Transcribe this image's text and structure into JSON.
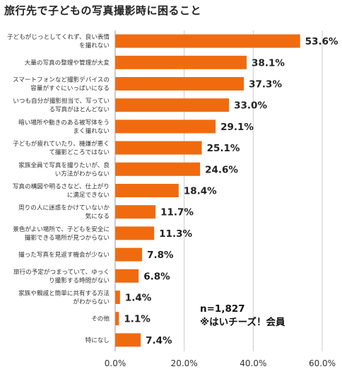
{
  "colors": {
    "bar": "#f06b0f",
    "axis": "#999999",
    "grid": "#cccccc"
  },
  "note": {
    "n": "n=1,827",
    "member": "※はいチーズ！会員"
  },
  "chart_data": {
    "type": "bar",
    "orientation": "horizontal",
    "title": "旅行先で子どもの写真撮影時に困ること",
    "categories": [
      [
        "子どもがじっとしてくれず、良い表情",
        "を撮れない"
      ],
      [
        "大量の写真の整理や管理が大変"
      ],
      [
        "スマートフォンなど撮影デバイスの",
        "容量がすぐにいっぱいになる"
      ],
      [
        "いつも自分が撮影担当で、写ってい",
        "る写真がほとんどない"
      ],
      [
        "暗い場所や動きのある被写体をう",
        "まく撮れない"
      ],
      [
        "子どもが疲れていたり、機嫌が悪く",
        "て撮影どころではない"
      ],
      [
        "家族全員で写真を撮りたいが、良",
        "い方法がわからない"
      ],
      [
        "写真の構図や明るさなど、仕上がり",
        "に満足できない"
      ],
      [
        "周りの人に迷惑をかけていないか",
        "気になる"
      ],
      [
        "景色がよい場所で、子どもを安全に",
        "撮影できる場所が見つからない"
      ],
      [
        "撮った写真を見返す機会が少ない"
      ],
      [
        "旅行の予定がつまっていて、ゆっく",
        "り撮影する時間がない"
      ],
      [
        "家族や親戚と簡単に共有する方法",
        "がわからない"
      ],
      [
        "その他"
      ],
      [
        "特になし"
      ]
    ],
    "values": [
      53.6,
      38.1,
      37.3,
      33.0,
      29.1,
      25.1,
      24.6,
      18.4,
      11.7,
      11.3,
      7.8,
      6.8,
      1.4,
      1.1,
      7.4
    ],
    "value_labels": [
      "53.6%",
      "38.1%",
      "37.3%",
      "33.0%",
      "29.1%",
      "25.1%",
      "24.6%",
      "18.4%",
      "11.7%",
      "11.3%",
      "7.8%",
      "6.8%",
      "1.4%",
      "1.1%",
      "7.4%"
    ],
    "xticks": [
      "0.0%",
      "20.0%",
      "40.0%",
      "60.0%"
    ],
    "xtick_values": [
      0,
      20,
      40,
      60
    ],
    "xlim": [
      0,
      60
    ],
    "grid": true
  }
}
